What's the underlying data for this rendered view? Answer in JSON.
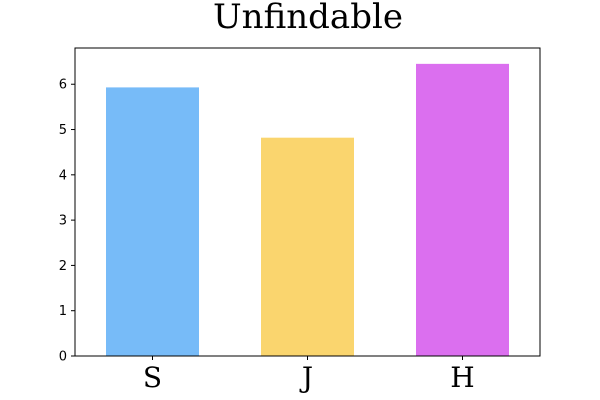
{
  "chart_data": {
    "type": "bar",
    "title": "Unfindable",
    "categories": [
      "S",
      "J",
      "H"
    ],
    "values": [
      5.93,
      4.82,
      6.45
    ],
    "colors": [
      "#77bbf8",
      "#fad56e",
      "#db6fef"
    ],
    "ylim": [
      0,
      6.8
    ],
    "yticks": [
      0,
      1,
      2,
      3,
      4,
      5,
      6
    ],
    "xlabel": "",
    "ylabel": "",
    "grid": false,
    "legend": "none"
  }
}
